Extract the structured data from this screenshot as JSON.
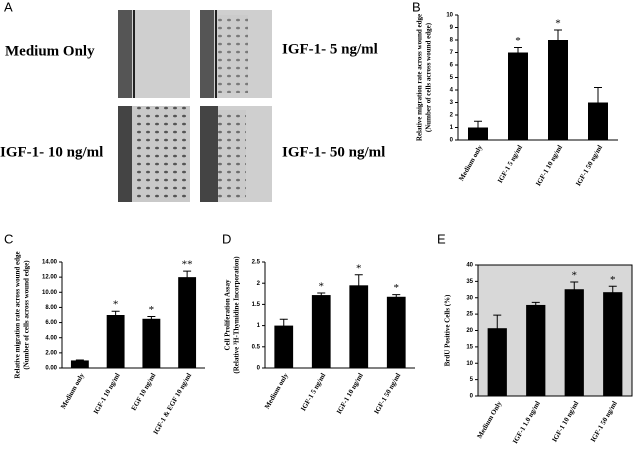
{
  "panel_a": {
    "panel": "A",
    "labels": [
      "Medium Only",
      "IGF-1- 5 ng/ml",
      "IGF-1- 10 ng/ml",
      "IGF-1- 50 ng/ml"
    ]
  },
  "chart_data": [
    {
      "type": "bar",
      "panel": "B",
      "ylabel": [
        "Relative migration rate across wound edge",
        "(Number of cells across wound edge)"
      ],
      "categories": [
        "Medium only",
        "IGF-1 5 ng/ml",
        "IGF-1 10 ng/ml",
        "IGF-1 50 ng/ml"
      ],
      "values": [
        1,
        7,
        8,
        3
      ],
      "errors": [
        0.5,
        0.4,
        0.8,
        1.2
      ],
      "value_annotations": [
        null,
        "*",
        "*",
        null
      ],
      "ylim": [
        0,
        10
      ],
      "yticks": [
        0,
        1,
        2,
        3,
        4,
        5,
        6,
        7,
        8,
        9,
        10
      ],
      "color": "#000000",
      "grid": false,
      "frame": false
    },
    {
      "type": "bar",
      "panel": "C",
      "ylabel": [
        "Relative migration rate across wound edge",
        "(Number of cells across wound edge)"
      ],
      "categories": [
        "Medium only",
        "IGF-1 10 ng/ml",
        "EGF 10 ng/ml",
        "IGF-1 & EGF 10 ng/ml"
      ],
      "values": [
        1,
        7,
        6.5,
        12
      ],
      "errors": [
        0.05,
        0.5,
        0.3,
        0.8
      ],
      "value_annotations": [
        null,
        "*",
        "*",
        "**"
      ],
      "ylim": [
        0,
        14
      ],
      "yticks": [
        {
          "value": 0,
          "label": "0.00"
        },
        {
          "value": 2,
          "label": "2.00"
        },
        {
          "value": 4,
          "label": "4.00"
        },
        {
          "value": 6,
          "label": "6.00"
        },
        {
          "value": 8,
          "label": "8.00"
        },
        {
          "value": 10,
          "label": "10.00"
        },
        {
          "value": 12,
          "label": "12.00"
        },
        {
          "value": 14,
          "label": "14.00"
        }
      ],
      "color": "#000000",
      "grid": false,
      "frame": false
    },
    {
      "type": "bar",
      "panel": "D",
      "ylabel": [
        "Cell Proliferation Assay",
        "(Relative ³H-Thymidine Incorporation)"
      ],
      "categories": [
        "Medium only",
        "IGF-1 5 ng/ml",
        "IGF-1 10 ng/ml",
        "IGF-1 50 ng/ml"
      ],
      "values": [
        1,
        1.72,
        1.95,
        1.68
      ],
      "errors": [
        0.15,
        0.05,
        0.25,
        0.05
      ],
      "value_annotations": [
        null,
        "*",
        "*",
        "*"
      ],
      "ylim": [
        0,
        2.5
      ],
      "yticks": [
        0,
        0.5,
        1,
        1.5,
        2,
        2.5
      ],
      "color": "#000000",
      "grid": false,
      "frame": false
    },
    {
      "type": "bar",
      "panel": "E",
      "ylabel": [
        "BrdU Positive Cells (%)"
      ],
      "categories": [
        "Medium Only",
        "IGF-1 1.0 ng/ml",
        "IGF-1 10 ng/ml",
        "IGF-1 50 ng/ml"
      ],
      "values": [
        20.7,
        27.8,
        32.6,
        31.7
      ],
      "errors": [
        4,
        0.8,
        2.2,
        1.8
      ],
      "value_annotations": [
        null,
        null,
        "*",
        "*"
      ],
      "ylim": [
        0,
        40
      ],
      "yticks": [
        0,
        5,
        10,
        15,
        20,
        25,
        30,
        35,
        40
      ],
      "color": "#000000",
      "grid": false,
      "frame": true
    }
  ]
}
